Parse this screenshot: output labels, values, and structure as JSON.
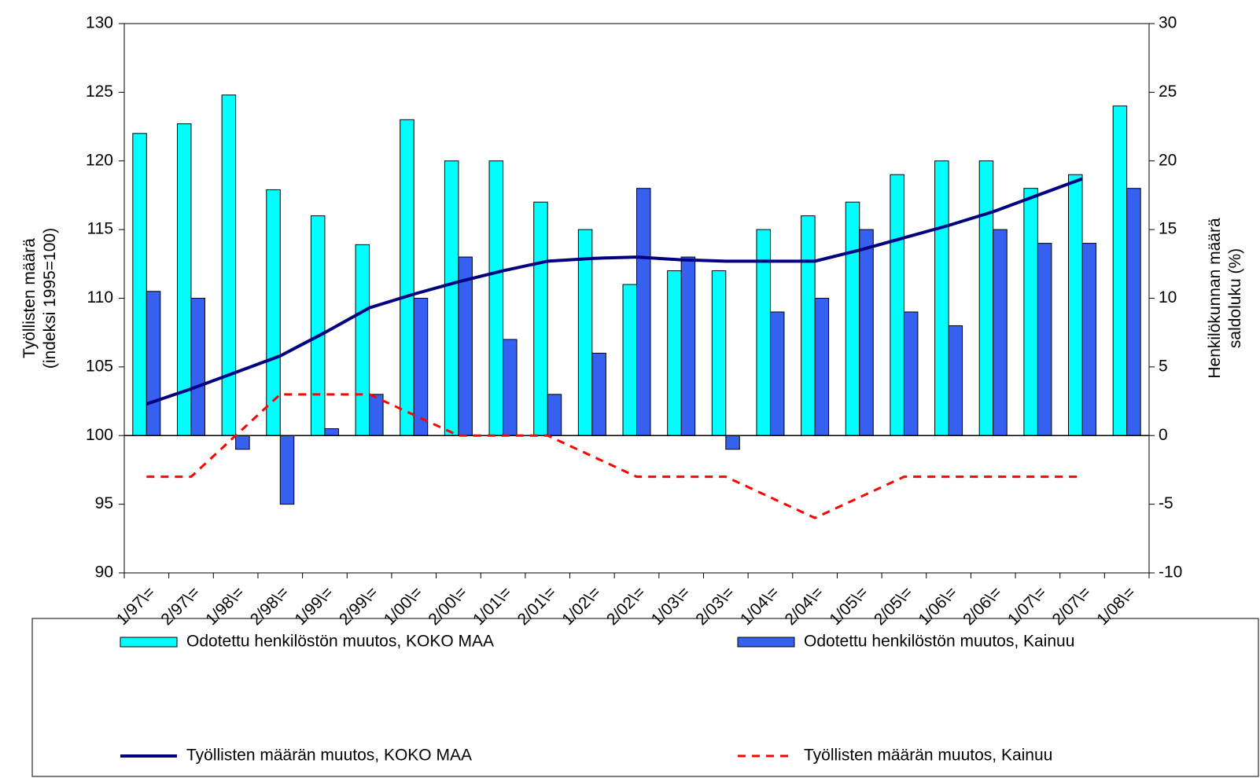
{
  "chart_data": {
    "type": "bar",
    "categories": [
      "1/97\\=",
      "2/97\\=",
      "1/98\\=",
      "2/98\\=",
      "1/99\\=",
      "2/99\\=",
      "1/00\\=",
      "2/00\\=",
      "1/01\\=",
      "2/01\\=",
      "1/02\\=",
      "2/02\\=",
      "1/03\\=",
      "2/03\\=",
      "1/04\\=",
      "2/04\\=",
      "1/05\\=",
      "2/05\\=",
      "1/06\\=",
      "2/06\\=",
      "1/07\\=",
      "2/07\\=",
      "1/08\\="
    ],
    "y_label": [
      "Työllisten määrä",
      "(indeksi 1995=100)"
    ],
    "y2_label": [
      "Henkilökunnan määrä",
      "saldoluku (%)"
    ],
    "ylim": [
      90,
      130
    ],
    "yticks": [
      90,
      95,
      100,
      105,
      110,
      115,
      120,
      125,
      130
    ],
    "y2lim": [
      -10,
      30
    ],
    "y2ticks": [
      -10,
      -5,
      0,
      5,
      10,
      15,
      20,
      25,
      30
    ],
    "legend": "bottom",
    "series": [
      {
        "name": "Odotettu henkilöstön muutos, KOKO MAA",
        "type": "bar",
        "axis": "y2",
        "color": "#00ffff",
        "values": [
          22,
          22.7,
          24.8,
          17.9,
          16,
          13.9,
          23,
          20,
          20,
          17,
          15,
          11,
          12,
          12,
          15,
          16,
          17,
          19,
          20,
          20,
          18,
          19,
          24
        ]
      },
      {
        "name": "Odotettu henkilöstön muutos, Kainuu",
        "type": "bar",
        "axis": "y2",
        "color": "#3560f0",
        "values": [
          10.5,
          10,
          -1,
          -5,
          0.5,
          3,
          10,
          13,
          7,
          3,
          6,
          18,
          13,
          -1,
          9,
          10,
          15,
          9,
          8,
          15,
          14,
          14,
          18
        ]
      },
      {
        "name": "Työllisten määrän muutos, KOKO MAA",
        "type": "line",
        "color": "#000080",
        "values": [
          102.3,
          103.4,
          104.6,
          105.8,
          107.5,
          109.3,
          110.3,
          111.2,
          112,
          112.7,
          112.9,
          113,
          112.8,
          112.7,
          112.7,
          112.7,
          113.5,
          114.4,
          115.3,
          116.3,
          117.5,
          118.7,
          null
        ]
      },
      {
        "name": "Työllisten määrän muutos, Kainuu",
        "type": "line",
        "style": "dashed",
        "color": "#ff0000",
        "values": [
          97,
          97,
          100,
          103,
          103,
          103,
          101.5,
          100,
          100,
          100,
          98.5,
          97,
          97,
          97,
          95.5,
          94,
          95.5,
          97,
          97,
          97,
          97,
          97,
          null
        ]
      }
    ]
  }
}
